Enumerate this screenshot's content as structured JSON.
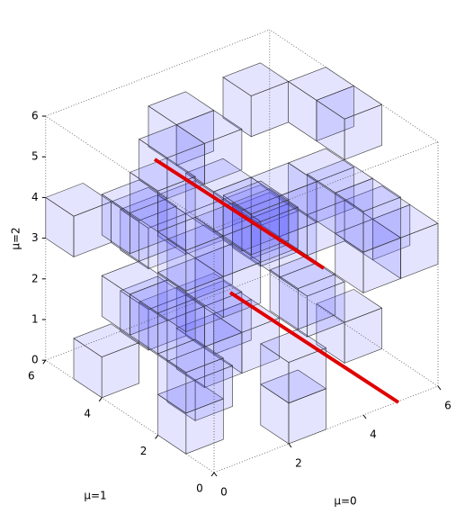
{
  "axes": {
    "x": {
      "label": "μ=0",
      "ticks": [
        0,
        2,
        4,
        6
      ],
      "lim": [
        0,
        6
      ]
    },
    "y": {
      "label": "μ=1",
      "ticks": [
        0,
        2,
        4,
        6
      ],
      "lim": [
        0,
        6
      ]
    },
    "z": {
      "label": "μ=2",
      "ticks": [
        0,
        1,
        2,
        3,
        4,
        5,
        6
      ],
      "lim": [
        0,
        6
      ]
    }
  }
}
